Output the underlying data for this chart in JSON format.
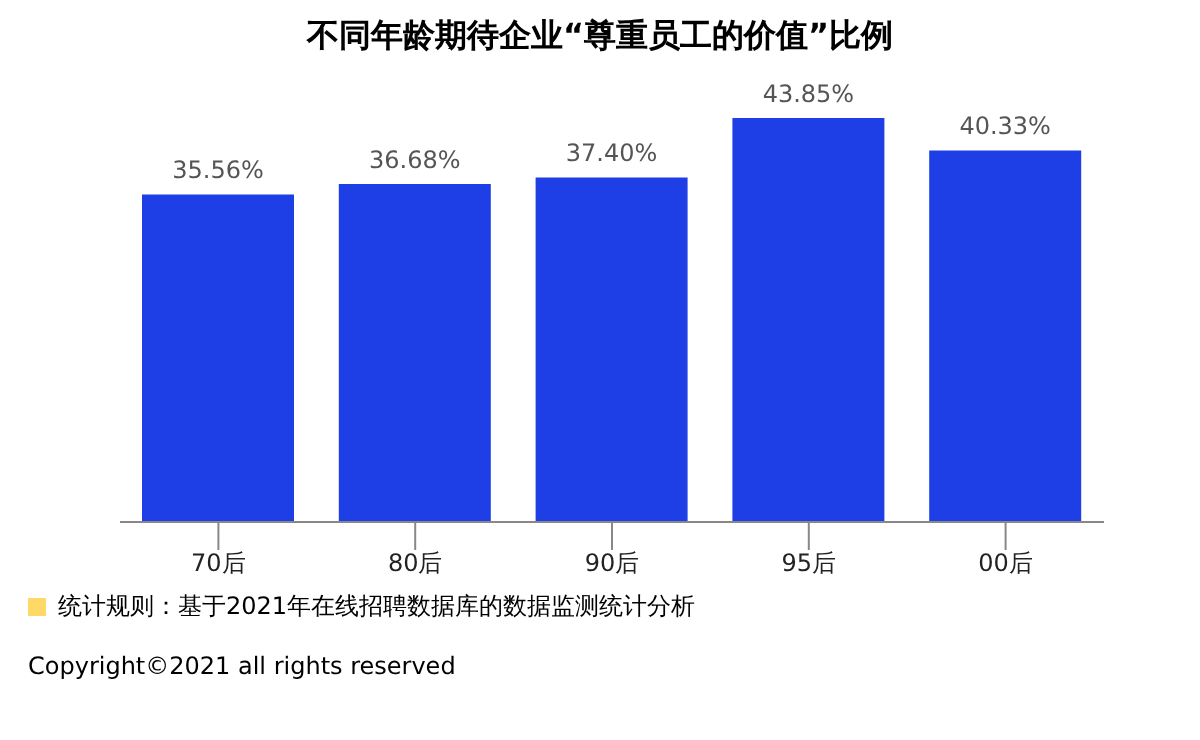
{
  "chart_data": {
    "type": "bar",
    "title": "不同年龄期待企业“尊重员工的价值”比例",
    "categories": [
      "70后",
      "80后",
      "90后",
      "95后",
      "00后"
    ],
    "values": [
      35.56,
      36.68,
      37.4,
      43.85,
      40.33
    ],
    "value_labels": [
      "35.56%",
      "36.68%",
      "37.40%",
      "43.85%",
      "40.33%"
    ],
    "color": "#1f3fe6",
    "annotations": [
      "统计规则：基于2021年在线招聘数据库的数据监测统计分析",
      "Copyright©2021 all rights reserved"
    ]
  }
}
